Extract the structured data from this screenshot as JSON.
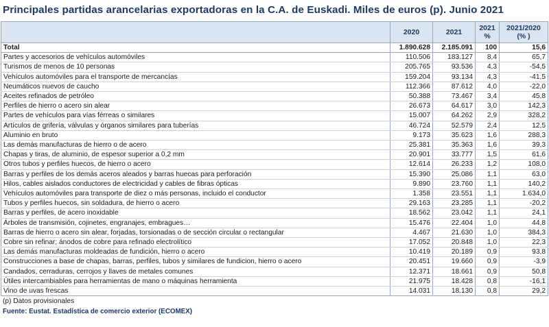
{
  "title": "Principales partidas arancelarias exportadoras en la C.A. de Euskadi. Miles de euros (p). Junio 2021",
  "table": {
    "headers": {
      "col_2020": "2020",
      "col_2021": "2021",
      "col_pct_year": "2021",
      "col_pct_unit": "%",
      "col_var_year": "2021/2020",
      "col_var_unit": "(% )"
    },
    "total": {
      "label": "Total",
      "v2020": "1.890.628",
      "v2021": "2.185.091",
      "pct": "100",
      "var": "15,6"
    },
    "rows": [
      {
        "label": "Partes y accesorios de vehículos automóviles",
        "v2020": "110.506",
        "v2021": "183.127",
        "pct": "8,4",
        "var": "65,7"
      },
      {
        "label": "Turismos de menos de  10 personas",
        "v2020": "205.765",
        "v2021": "93.536",
        "pct": "4,3",
        "var": "-54,5"
      },
      {
        "label": "Vehículos automóviles para el transporte de mercancías",
        "v2020": "159.204",
        "v2021": "93.134",
        "pct": "4,3",
        "var": "-41,5"
      },
      {
        "label": "Neumáticos nuevos de caucho",
        "v2020": "112.366",
        "v2021": "87.612",
        "pct": "4,0",
        "var": "-22,0"
      },
      {
        "label": "Aceites refinados de petróleo",
        "v2020": "50.388",
        "v2021": "73.467",
        "pct": "3,4",
        "var": "45,8"
      },
      {
        "label": "Perfiles de hierro o acero sin alear",
        "v2020": "26.673",
        "v2021": "64.617",
        "pct": "3,0",
        "var": "142,3"
      },
      {
        "label": "Partes de vehículos para vías férreas o similares",
        "v2020": "15.007",
        "v2021": "64.262",
        "pct": "2,9",
        "var": "328,2"
      },
      {
        "label": "Artículos de grifería, válvulas y órganos similares para tuberías",
        "v2020": "46.724",
        "v2021": "52.579",
        "pct": "2,4",
        "var": "12,5"
      },
      {
        "label": "Aluminio en bruto",
        "v2020": "9.173",
        "v2021": "35.623",
        "pct": "1,6",
        "var": "288,3"
      },
      {
        "label": "Las demás manufacturas de hierro o de acero",
        "v2020": "25.381",
        "v2021": "35.363",
        "pct": "1,6",
        "var": "39,3"
      },
      {
        "label": "Chapas y tiras, de aluminio, de espesor superior a 0,2 mm",
        "v2020": "20.901",
        "v2021": "33.777",
        "pct": "1,5",
        "var": "61,6"
      },
      {
        "label": "Otros tubos y perfiles huecos, de hierro o acero",
        "v2020": "12.614",
        "v2021": "26.233",
        "pct": "1,2",
        "var": "108,0"
      },
      {
        "label": "Barras y perfiles de los demás aceros aleados y barras huecas para perforación",
        "v2020": "15.390",
        "v2021": "25.086",
        "pct": "1,1",
        "var": "63,0"
      },
      {
        "label": "Hilos, cables aislados conductores de electricidad y cables de fibras ópticas",
        "v2020": "9.890",
        "v2021": "23.760",
        "pct": "1,1",
        "var": "140,2"
      },
      {
        "label": "Vehículos automóviles para transporte de diez o más personas, incluido el conductor",
        "v2020": "1.358",
        "v2021": "23.551",
        "pct": "1,1",
        "var": "1.634,0"
      },
      {
        "label": "Tubos y perfiles huecos, sin soldadura, de hierro o acero",
        "v2020": "29.163",
        "v2021": "23.285",
        "pct": "1,1",
        "var": "-20,2"
      },
      {
        "label": "Barras y perfiles, de acero inoxidable",
        "v2020": "18.562",
        "v2021": "23.042",
        "pct": "1,1",
        "var": "24,1"
      },
      {
        "label": "Árboles de transmisión, cojinetes, engranajes, embragues…",
        "v2020": "15.476",
        "v2021": "22.404",
        "pct": "1,0",
        "var": "44,8"
      },
      {
        "label": "Barras de hierro o acero sin alear, forjadas, torsionadas o de sección circular o rectangular",
        "v2020": "4.467",
        "v2021": "21.630",
        "pct": "1,0",
        "var": "384,3"
      },
      {
        "label": "Cobre sin refinar; ánodos de cobre para refinado electrolítico",
        "v2020": "17.052",
        "v2021": "20.848",
        "pct": "1,0",
        "var": "22,3"
      },
      {
        "label": "Las demás manufacturas moldeadas de fundición, hierro o acero",
        "v2020": "10.419",
        "v2021": "20.189",
        "pct": "0,9",
        "var": "93,8"
      },
      {
        "label": "Construcciones a base de chapas, barras, perfiles, tubos y similares de fundicion, hierro o acero",
        "v2020": "20.451",
        "v2021": "19.660",
        "pct": "0,9",
        "var": "-3,9"
      },
      {
        "label": "Candados, cerraduras, cerrojos y llaves de metales comunes",
        "v2020": "12.371",
        "v2021": "18.661",
        "pct": "0,9",
        "var": "50,8"
      },
      {
        "label": "Útiles intercambiables para herramientas de mano o máquinas herramienta",
        "v2020": "21.975",
        "v2021": "18.428",
        "pct": "0,8",
        "var": "-16,1"
      },
      {
        "label": "Vino de uvas frescas",
        "v2020": "14.031",
        "v2021": "18.130",
        "pct": "0,8",
        "var": "29,2"
      }
    ]
  },
  "note": "(p) Datos provisionales",
  "source": "Fuente: Eustat. Estadística de comercio exterior (ECOMEX)"
}
